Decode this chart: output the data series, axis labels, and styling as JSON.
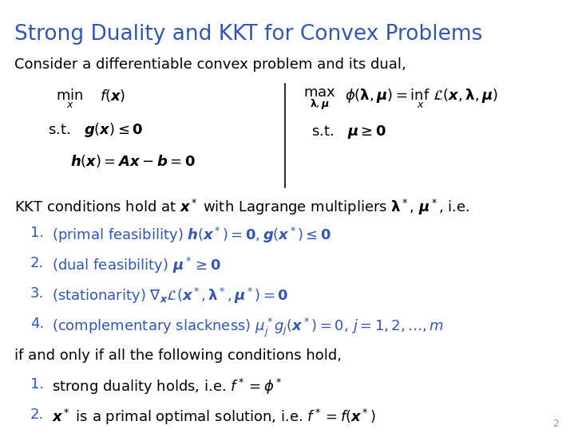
{
  "title": "Strong Duality and KKT for Convex Problems",
  "title_color": "#3355bb",
  "body_color": "#000000",
  "blue_color": "#3355bb",
  "bg_color": "#ffffff",
  "figsize": [
    7.14,
    5.48
  ],
  "dpi": 100,
  "fs_title": 19,
  "fs_body": 13,
  "fs_math": 13,
  "fs_page": 9
}
